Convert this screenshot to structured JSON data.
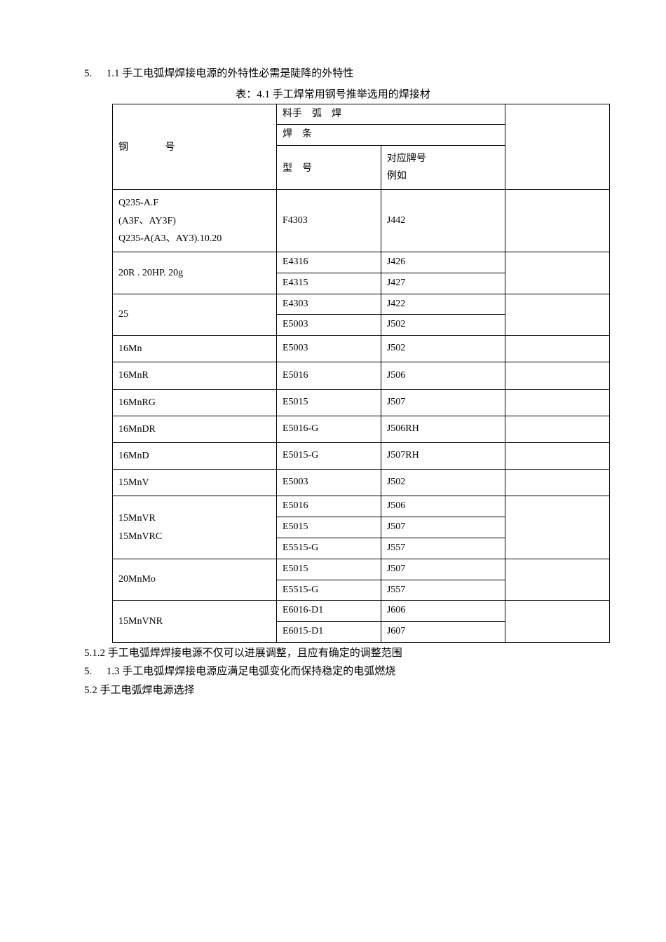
{
  "paragraphs": {
    "p1_prefix": "5.",
    "p1_text": "1.1 手工电弧焊焊接电源的外特性必需是陡降的外特性",
    "caption": "表：4.1 手工焊常用钢号推举选用的焊接材",
    "p2": "5.1.2 手工电弧焊焊接电源不仅可以进展调整，且应有确定的调整范围",
    "p3_prefix": "5.",
    "p3_text": "1.3 手工电弧焊焊接电源应满足电弧变化而保持稳定的电弧燃烧",
    "p4": "5.2 手工电弧焊电源选择"
  },
  "table": {
    "colors": {
      "border": "#000000",
      "text": "#000000",
      "background": "#ffffff"
    },
    "font_size": 14,
    "header": {
      "steel_label": "钢号",
      "top_right": "料手　弧　焊",
      "sub_right": "焊　条",
      "type_label": "型　号",
      "brand_label_1": "对应牌号",
      "brand_label_2": "例如"
    },
    "rows": [
      {
        "steel": [
          "Q235-A.F",
          "(A3F、AY3F)",
          "Q235-A(A3、AY3).10.20"
        ],
        "types": [
          "F4303"
        ],
        "brands": [
          "J442"
        ]
      },
      {
        "steel": [
          "20R  .  20HP.  20g"
        ],
        "types": [
          "E4316",
          "E4315"
        ],
        "brands": [
          "J426",
          "J427"
        ]
      },
      {
        "steel": [
          "25"
        ],
        "types": [
          "E4303",
          "E5003"
        ],
        "brands": [
          "J422",
          "J502"
        ]
      },
      {
        "steel": [
          "16Mn"
        ],
        "types": [
          "E5003"
        ],
        "brands": [
          "J502"
        ]
      },
      {
        "steel": [
          "16MnR"
        ],
        "types": [
          "E5016"
        ],
        "brands": [
          "J506"
        ]
      },
      {
        "steel": [
          "16MnRG"
        ],
        "types": [
          "E5015"
        ],
        "brands": [
          "J507"
        ]
      },
      {
        "steel": [
          "16MnDR"
        ],
        "types": [
          "E5016-G"
        ],
        "brands": [
          "J506RH"
        ]
      },
      {
        "steel": [
          "16MnD"
        ],
        "types": [
          "E5015-G"
        ],
        "brands": [
          "J507RH"
        ]
      },
      {
        "steel": [
          "15MnV"
        ],
        "types": [
          "E5003"
        ],
        "brands": [
          "J502"
        ]
      },
      {
        "steel": [
          "15MnVR",
          "15MnVRC"
        ],
        "types": [
          "E5016",
          "E5015",
          "E5515-G"
        ],
        "brands": [
          "J506",
          "J507",
          "J557"
        ]
      },
      {
        "steel": [
          "20MnMo"
        ],
        "types": [
          "E5015",
          "E5515-G"
        ],
        "brands": [
          "J507",
          "J557"
        ]
      },
      {
        "steel": [
          "15MnVNR"
        ],
        "types": [
          "E6016-D1",
          "E6015-D1"
        ],
        "brands": [
          "J606",
          "J607"
        ]
      }
    ]
  }
}
